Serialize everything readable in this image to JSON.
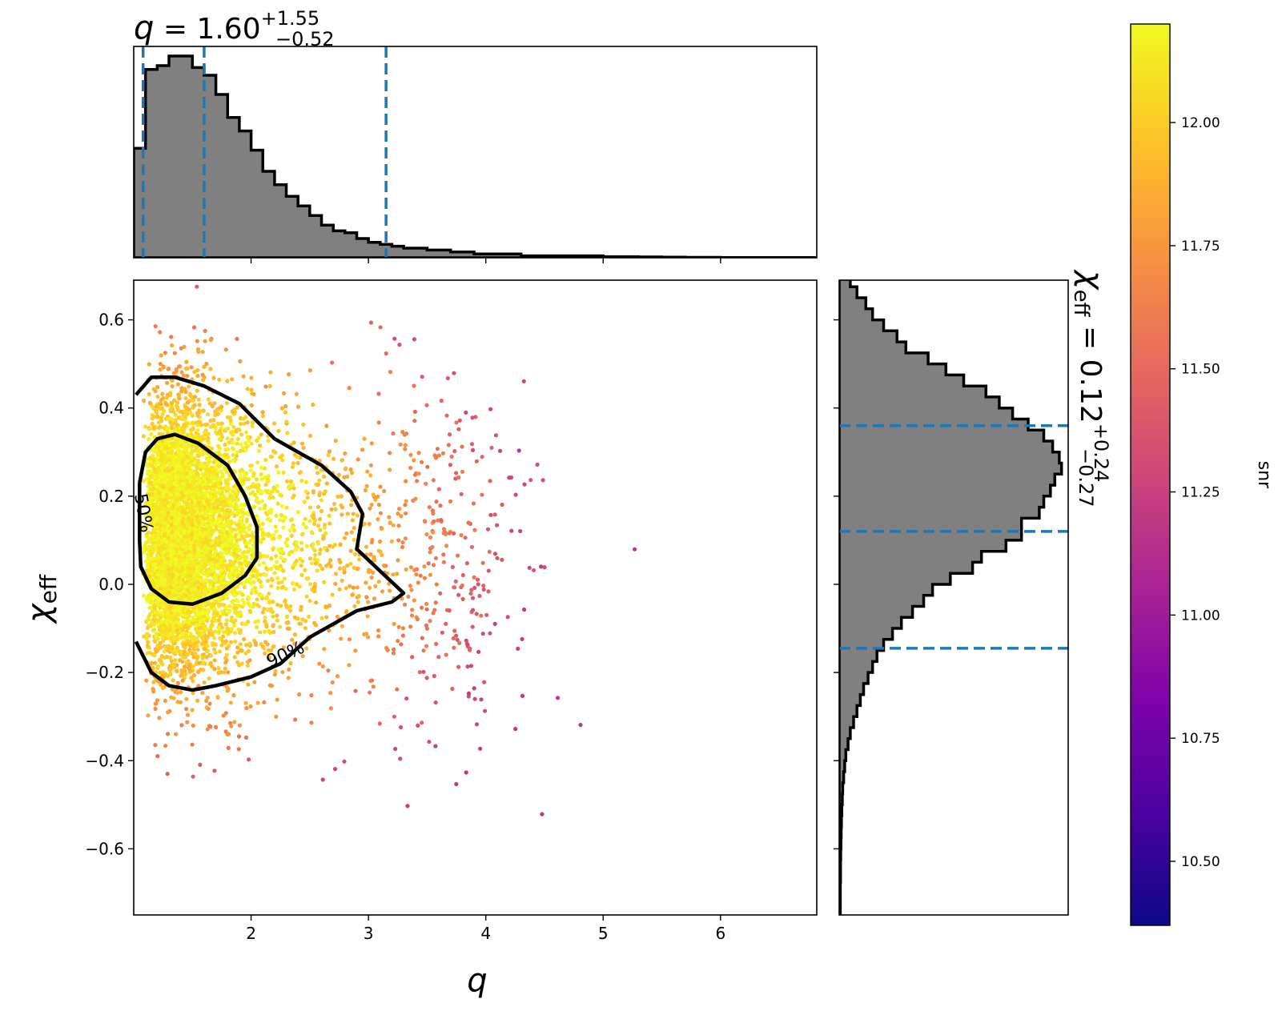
{
  "chart_data": [
    {
      "type": "scatter",
      "panel": "joint",
      "title": "",
      "xlabel": "q",
      "ylabel_symbol": "χ",
      "ylabel_sub": "eff",
      "xlim": [
        1.0,
        6.82
      ],
      "ylim": [
        -0.75,
        0.69
      ],
      "xticks": [
        2,
        3,
        4,
        5,
        6
      ],
      "yticks": [
        -0.6,
        -0.4,
        -0.2,
        0.0,
        0.2,
        0.4,
        0.6
      ],
      "xtick_labels": [
        "2",
        "3",
        "4",
        "5",
        "6"
      ],
      "ytick_labels": [
        "−0.6",
        "−0.4",
        "−0.2",
        "0.0",
        "0.2",
        "0.4",
        "0.6"
      ],
      "color_by": "snr",
      "colormap": "plasma",
      "point_count_estimate": 20000,
      "scatter_description_values": {
        "core_region_q": [
          1.0,
          2.9
        ],
        "core_region_chi_eff": [
          -0.2,
          0.45
        ],
        "sparse_tail_q_max": 6.8
      },
      "contours": [
        {
          "label": "50%",
          "points": [
            [
              1.05,
              0.23
            ],
            [
              1.1,
              0.3
            ],
            [
              1.2,
              0.33
            ],
            [
              1.35,
              0.34
            ],
            [
              1.55,
              0.32
            ],
            [
              1.8,
              0.27
            ],
            [
              1.95,
              0.2
            ],
            [
              2.05,
              0.13
            ],
            [
              2.05,
              0.06
            ],
            [
              1.95,
              0.02
            ],
            [
              1.75,
              -0.02
            ],
            [
              1.5,
              -0.045
            ],
            [
              1.3,
              -0.04
            ],
            [
              1.15,
              -0.01
            ],
            [
              1.06,
              0.04
            ],
            [
              1.05,
              0.1
            ],
            [
              1.05,
              0.23
            ]
          ]
        },
        {
          "label": "90%",
          "points": [
            [
              1.02,
              0.43
            ],
            [
              1.15,
              0.47
            ],
            [
              1.35,
              0.47
            ],
            [
              1.6,
              0.45
            ],
            [
              1.9,
              0.41
            ],
            [
              2.2,
              0.33
            ],
            [
              2.6,
              0.27
            ],
            [
              2.85,
              0.21
            ],
            [
              2.95,
              0.16
            ],
            [
              2.9,
              0.08
            ],
            [
              3.1,
              0.03
            ],
            [
              3.3,
              -0.02
            ],
            [
              3.2,
              -0.04
            ],
            [
              2.9,
              -0.06
            ],
            [
              2.5,
              -0.12
            ],
            [
              2.25,
              -0.18
            ],
            [
              2.0,
              -0.21
            ],
            [
              1.7,
              -0.23
            ],
            [
              1.5,
              -0.24
            ],
            [
              1.3,
              -0.23
            ],
            [
              1.15,
              -0.2
            ],
            [
              1.02,
              -0.13
            ]
          ]
        }
      ]
    },
    {
      "type": "histogram",
      "panel": "top-marginal",
      "title_prefix": "q",
      "title_equals": " = 1.60",
      "title_sup": "+1.55",
      "title_sub": "−0.52",
      "bin_start": 1.0,
      "bin_width": 0.1,
      "density": [
        0.57,
        0.98,
        1.0,
        1.05,
        1.05,
        0.99,
        0.95,
        0.85,
        0.73,
        0.66,
        0.56,
        0.45,
        0.38,
        0.32,
        0.27,
        0.22,
        0.17,
        0.14,
        0.13,
        0.1,
        0.08,
        0.07,
        0.06,
        0.05,
        0.05,
        0.04,
        0.04,
        0.03,
        0.03,
        0.02,
        0.02,
        0.02,
        0.02,
        0.01,
        0.01,
        0.01,
        0.01,
        0.01,
        0.01,
        0.01,
        0.005,
        0.005,
        0.005,
        0.004,
        0.004,
        0.003,
        0.003,
        0.002,
        0.002,
        0.002,
        0.001,
        0.001,
        0.001,
        0.001,
        0.001,
        0.001,
        0.001,
        0.001
      ],
      "ymax": 1.1,
      "dashed_lines_q": [
        1.08,
        1.6,
        3.15
      ]
    },
    {
      "type": "histogram",
      "panel": "right-marginal",
      "orientation": "horizontal",
      "label_prefix": "χ",
      "label_sub_eff": "eff",
      "label_equals": " = 0.12",
      "label_sup": "+0.24",
      "label_sub": "−0.27",
      "bin_start": -0.75,
      "bin_width": 0.025,
      "density": [
        0.005,
        0.005,
        0.005,
        0.006,
        0.006,
        0.007,
        0.008,
        0.009,
        0.01,
        0.012,
        0.014,
        0.016,
        0.02,
        0.025,
        0.03,
        0.04,
        0.05,
        0.065,
        0.08,
        0.095,
        0.11,
        0.13,
        0.15,
        0.17,
        0.2,
        0.24,
        0.28,
        0.33,
        0.38,
        0.42,
        0.5,
        0.6,
        0.64,
        0.75,
        0.82,
        0.82,
        0.9,
        0.92,
        0.95,
        0.97,
        1.0,
        0.99,
        0.96,
        0.92,
        0.85,
        0.78,
        0.72,
        0.66,
        0.56,
        0.48,
        0.4,
        0.3,
        0.26,
        0.2,
        0.15,
        0.12,
        0.08,
        0.05,
        0.03
      ],
      "xmax": 1.03,
      "dashed_lines_chi": [
        -0.145,
        0.12,
        0.36
      ]
    },
    {
      "type": "colorbar",
      "label": "snr",
      "colormap": "plasma",
      "range": [
        10.37,
        12.2
      ],
      "ticks": [
        10.5,
        10.75,
        11.0,
        11.25,
        11.5,
        11.75,
        12.0
      ],
      "tick_labels": [
        "10.50",
        "10.75",
        "11.00",
        "11.25",
        "11.50",
        "11.75",
        "12.00"
      ]
    }
  ],
  "colors": {
    "hist_fill": "#808080",
    "hist_edge": "#000000",
    "dashed": "#1f77b4",
    "contour": "#000000"
  }
}
